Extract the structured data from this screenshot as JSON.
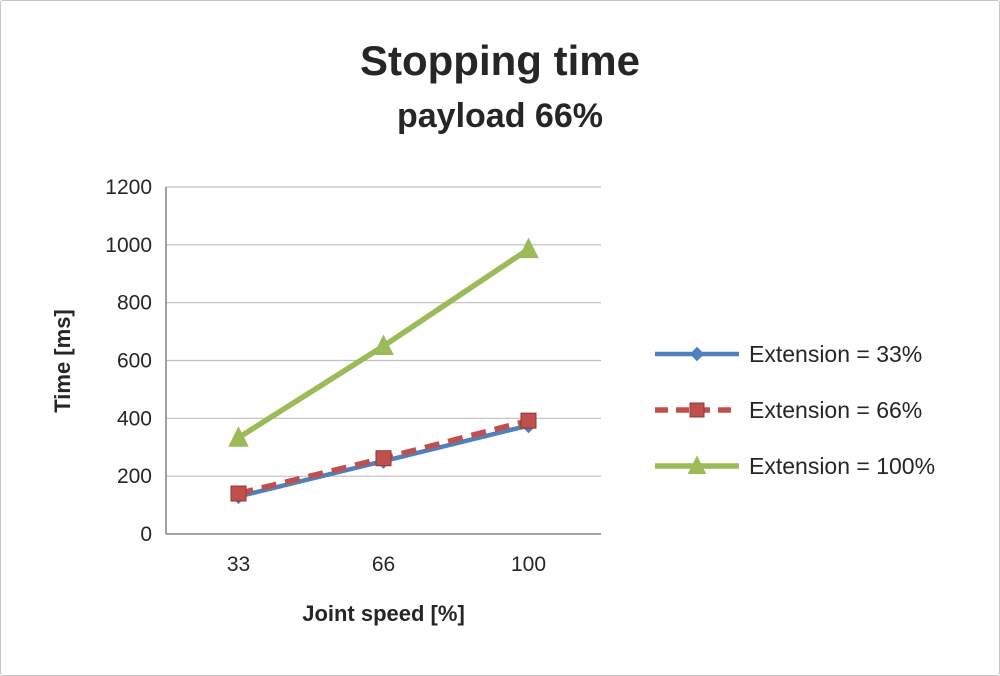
{
  "chart_data": {
    "type": "line",
    "title": "Stopping time",
    "subtitle": "payload 66%",
    "xlabel": "Joint speed [%]",
    "ylabel": "Time [ms]",
    "categories": [
      "33",
      "66",
      "100"
    ],
    "ylim": [
      0,
      1200
    ],
    "ytick_step": 200,
    "grid": true,
    "legend_position": "right",
    "series": [
      {
        "name": "Extension = 33%",
        "values": [
          130,
          252,
          375
        ],
        "color": "#4F81BD",
        "line": "solid",
        "marker": "diamond"
      },
      {
        "name": "Extension = 66%",
        "values": [
          140,
          262,
          392
        ],
        "color": "#C0504D",
        "line": "dashed",
        "marker": "square"
      },
      {
        "name": "Extension = 100%",
        "values": [
          333,
          650,
          985
        ],
        "color": "#9BBB59",
        "line": "solid",
        "marker": "triangle"
      }
    ]
  }
}
